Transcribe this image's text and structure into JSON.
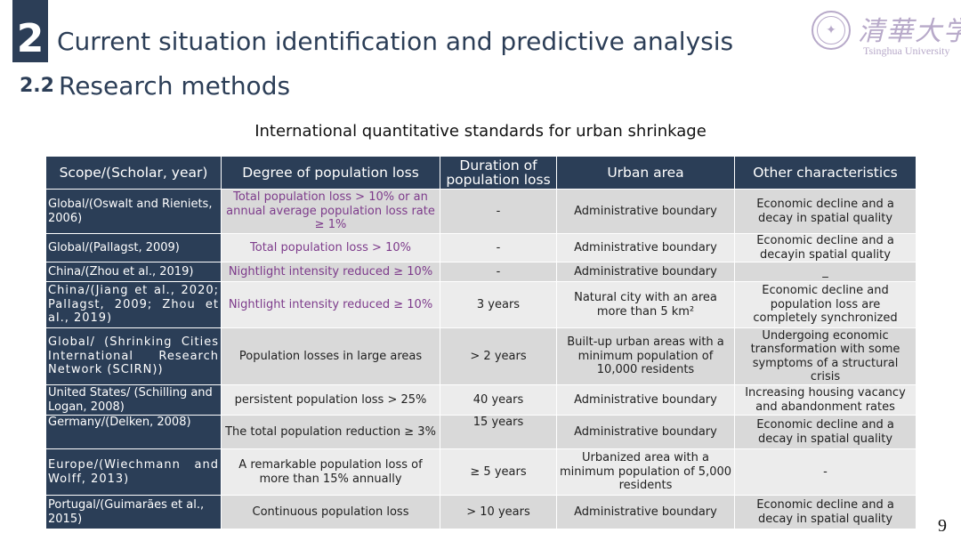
{
  "section": {
    "number": "2",
    "title": "Current situation identification and predictive analysis"
  },
  "subsection": {
    "number": "2.2",
    "title": "Research methods"
  },
  "logo": {
    "name_cn": "清華大学",
    "name_en": "Tsinghua University"
  },
  "table": {
    "caption": "International quantitative standards for urban shrinkage",
    "headers": [
      "Scope/(Scholar, year)",
      "Degree of population loss",
      "Duration of population loss",
      "Urban area",
      "Other characteristics"
    ],
    "rows": [
      {
        "scope": "Global/(Oswalt and Rieniets, 2006)",
        "loss": "Total population loss > 10% or an annual average population loss rate ≥ 1%",
        "duration": "-",
        "area": "Administrative boundary",
        "other": "Economic decline and a decay in spatial quality"
      },
      {
        "scope": "Global/(Pallagst, 2009)",
        "loss": "Total population loss > 10%",
        "duration": "-",
        "area": "Administrative boundary",
        "other": "Economic decline and a decayin spatial quality"
      },
      {
        "scope": "China/(Zhou et al., 2019)",
        "loss": "Nightlight intensity reduced ≥ 10%",
        "duration": "-",
        "area": "Administrative boundary",
        "other": "_"
      },
      {
        "scope": "China/(Jiang et al., 2020; Pallagst, 2009; Zhou et al., 2019)",
        "loss": "Nightlight intensity reduced ≥ 10%",
        "duration": "3 years",
        "area": "Natural city with an area more than 5 km²",
        "other": "Economic decline and population loss are completely synchronized"
      },
      {
        "scope": "Global/ (Shrinking Cities International Research Network (SCIRN))",
        "loss": "Population losses in large areas",
        "duration": "> 2 years",
        "area": "Built-up urban areas with a minimum population of 10,000 residents",
        "other": "Undergoing economic transformation with some symptoms of a structural crisis"
      },
      {
        "scope": "United States/ (Schilling and Logan, 2008)",
        "loss": "persistent population loss > 25%",
        "duration": "40 years",
        "area": "Administrative boundary",
        "other": "Increasing housing vacancy and abandonment rates"
      },
      {
        "scope": "Germany/(Delken, 2008)",
        "loss": "The total population reduction ≥ 3%",
        "duration": "15 years",
        "area": "Administrative boundary",
        "other": "Economic decline and a decay in spatial quality"
      },
      {
        "scope": "Europe/(Wiechmann and Wolff, 2013)",
        "loss": "A remarkable population loss of more than 15% annually",
        "duration": "≥ 5 years",
        "area": "Urbanized area with a minimum population of 5,000 residents",
        "other": "-"
      },
      {
        "scope": "Portugal/(Guimarães et al., 2015)",
        "loss": "Continuous population loss",
        "duration": "> 10 years",
        "area": "Administrative boundary",
        "other": "Economic decline and a decay in spatial quality"
      }
    ]
  },
  "page_number": "9"
}
